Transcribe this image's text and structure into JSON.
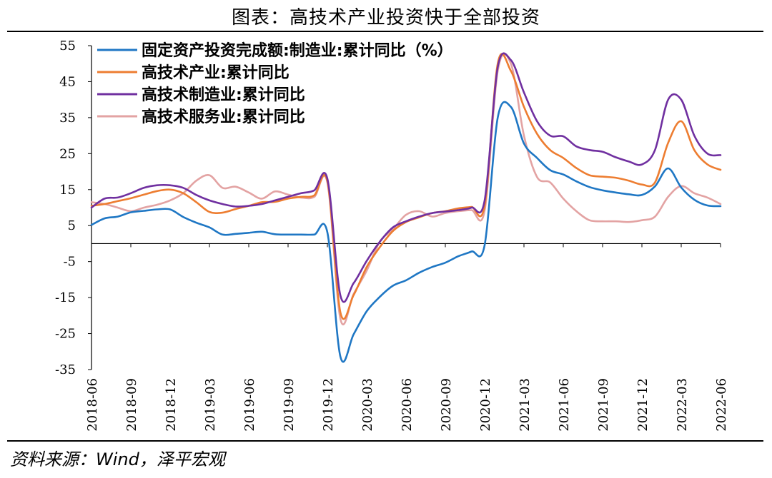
{
  "title": "图表：高技术产业投资快于全部投资",
  "source": "资料来源：Wind，泽平宏观",
  "chart_data": {
    "type": "line",
    "ylim": [
      -35,
      55
    ],
    "yticks": [
      55,
      45,
      35,
      25,
      15,
      5,
      -5,
      -15,
      -25,
      -35
    ],
    "xtick_labels": [
      "2018-06",
      "2018-09",
      "2018-12",
      "2019-03",
      "2019-06",
      "2019-09",
      "2019-12",
      "2020-03",
      "2020-06",
      "2020-09",
      "2020-12",
      "2021-03",
      "2021-06",
      "2021-09",
      "2021-12",
      "2022-03",
      "2022-06"
    ],
    "x": [
      "2018-06",
      "2018-07",
      "2018-08",
      "2018-09",
      "2018-10",
      "2018-11",
      "2018-12",
      "2019-01",
      "2019-02",
      "2019-03",
      "2019-04",
      "2019-05",
      "2019-06",
      "2019-07",
      "2019-08",
      "2019-09",
      "2019-10",
      "2019-11",
      "2019-12",
      "2020-01",
      "2020-02",
      "2020-03",
      "2020-04",
      "2020-05",
      "2020-06",
      "2020-07",
      "2020-08",
      "2020-09",
      "2020-10",
      "2020-11",
      "2020-12",
      "2021-01",
      "2021-02",
      "2021-03",
      "2021-04",
      "2021-05",
      "2021-06",
      "2021-07",
      "2021-08",
      "2021-09",
      "2021-10",
      "2021-11",
      "2021-12",
      "2022-01",
      "2022-02",
      "2022-03",
      "2022-04",
      "2022-05",
      "2022-06"
    ],
    "series": [
      {
        "name": "固定资产投资完成额:制造业:累计同比（%）",
        "color": "#1f77c4",
        "values": [
          5.2,
          7.0,
          7.5,
          8.7,
          9.1,
          9.5,
          9.5,
          7.4,
          5.8,
          4.5,
          2.5,
          2.7,
          3.0,
          3.3,
          2.6,
          2.5,
          2.5,
          2.5,
          3.1,
          -31.5,
          -25.2,
          -18.8,
          -14.8,
          -11.7,
          -10.2,
          -8.1,
          -6.5,
          -5.3,
          -3.5,
          -2.2,
          -0.4,
          35.0,
          38.0,
          27.8,
          23.8,
          20.4,
          19.2,
          17.3,
          15.7,
          14.8,
          14.2,
          13.7,
          13.5,
          15.9,
          20.9,
          15.6,
          12.2,
          10.6,
          10.4
        ]
      },
      {
        "name": "高技术产业:累计同比",
        "color": "#ed7d31",
        "values": [
          10.5,
          11.0,
          11.8,
          12.6,
          13.6,
          14.6,
          15.0,
          14.0,
          11.5,
          8.8,
          8.6,
          9.6,
          10.5,
          11.5,
          11.6,
          12.5,
          13.0,
          13.4,
          17.3,
          -19.2,
          -14.3,
          -6.5,
          -1.0,
          3.5,
          6.0,
          7.3,
          8.5,
          9.0,
          9.8,
          10.2,
          10.6,
          50.0,
          48.0,
          38.0,
          30.5,
          26.0,
          23.8,
          21.0,
          19.0,
          18.6,
          18.3,
          17.5,
          16.4,
          17.0,
          28.0,
          34.0,
          26.0,
          22.0,
          20.5
        ]
      },
      {
        "name": "高技术制造业:累计同比",
        "color": "#7030a0",
        "values": [
          10.0,
          12.5,
          12.8,
          14.0,
          15.5,
          16.2,
          16.2,
          15.5,
          13.5,
          12.0,
          11.0,
          10.3,
          10.5,
          11.0,
          12.0,
          13.0,
          14.0,
          14.8,
          18.0,
          -14.5,
          -11.0,
          -4.8,
          0.5,
          4.5,
          6.2,
          7.5,
          8.5,
          8.9,
          9.3,
          10.0,
          12.0,
          49.0,
          51.0,
          42.0,
          34.0,
          30.0,
          29.8,
          27.0,
          26.0,
          25.5,
          24.0,
          22.8,
          22.0,
          26.0,
          40.0,
          40.0,
          30.0,
          25.0,
          24.6
        ]
      },
      {
        "name": "高技术服务业:累计同比",
        "color": "#e3a3a3",
        "values": [
          11.5,
          11.0,
          10.0,
          9.0,
          10.0,
          10.8,
          12.0,
          14.0,
          17.5,
          19.0,
          15.5,
          15.8,
          14.2,
          12.5,
          14.5,
          13.6,
          12.8,
          13.0,
          17.0,
          -21.0,
          -14.0,
          -7.5,
          0.5,
          4.0,
          8.0,
          9.0,
          7.5,
          8.5,
          9.0,
          9.3,
          9.2,
          48.0,
          50.0,
          30.0,
          18.5,
          17.0,
          12.5,
          9.0,
          6.5,
          6.2,
          6.2,
          6.0,
          6.5,
          7.5,
          13.0,
          16.0,
          14.0,
          12.8,
          11.0
        ]
      }
    ]
  }
}
